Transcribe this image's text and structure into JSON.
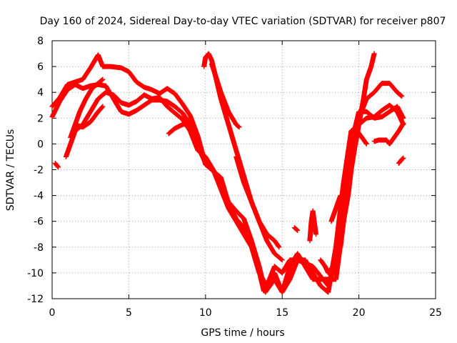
{
  "chart_data": {
    "type": "scatter",
    "title": "Day 160 of 2024, Sidereal Day-to-day VTEC variation (SDTVAR) for receiver p807",
    "xlabel": "GPS time / hours",
    "ylabel": "SDTVAR / TECUs",
    "xlim": [
      0,
      25
    ],
    "ylim": [
      -12,
      8
    ],
    "x_ticks": [
      0,
      5,
      10,
      15,
      20,
      25
    ],
    "y_ticks": [
      -12,
      -10,
      -8,
      -6,
      -4,
      -2,
      0,
      2,
      4,
      6,
      8
    ],
    "x_tick_labels": [
      "0",
      "5",
      "10",
      "15",
      "20",
      "25"
    ],
    "y_tick_labels": [
      "-12",
      "-10",
      "-8",
      "-6",
      "-4",
      "-2",
      "0",
      "2",
      "4",
      "6",
      "8"
    ],
    "grid": true,
    "legend": "none",
    "marker": "plus",
    "color": "#ff0000",
    "series": [
      {
        "points": [
          [
            0.0,
            2.9
          ],
          [
            0.5,
            3.6
          ],
          [
            1.0,
            4.6
          ],
          [
            1.5,
            4.8
          ],
          [
            2.0,
            5.0
          ],
          [
            2.5,
            5.9
          ],
          [
            3.0,
            6.9
          ],
          [
            3.3,
            6.0
          ],
          [
            3.8,
            6.0
          ],
          [
            4.5,
            5.9
          ],
          [
            5.0,
            5.6
          ],
          [
            5.5,
            4.8
          ],
          [
            6.0,
            4.4
          ],
          [
            6.5,
            4.2
          ],
          [
            7.0,
            3.9
          ],
          [
            7.5,
            4.3
          ],
          [
            8.0,
            3.9
          ],
          [
            8.5,
            3.1
          ],
          [
            9.0,
            2.2
          ],
          [
            9.5,
            0.6
          ],
          [
            10.0,
            -1.6
          ],
          [
            10.5,
            -2.1
          ],
          [
            11.0,
            -2.6
          ],
          [
            11.5,
            -4.6
          ],
          [
            12.0,
            -5.8
          ],
          [
            12.5,
            -6.5
          ],
          [
            13.0,
            -7.9
          ],
          [
            13.5,
            -9.9
          ],
          [
            13.8,
            -11.4
          ],
          [
            14.0,
            -11.2
          ],
          [
            14.5,
            -10.0
          ],
          [
            15.0,
            -11.5
          ],
          [
            15.5,
            -9.5
          ],
          [
            16.0,
            -8.5
          ],
          [
            16.5,
            -9.5
          ],
          [
            17.0,
            -10.5
          ],
          [
            17.5,
            -10.5
          ],
          [
            18.0,
            -10.5
          ],
          [
            18.5,
            -10.5
          ],
          [
            19.0,
            -6.0
          ],
          [
            19.5,
            -1.5
          ],
          [
            20.0,
            2.0
          ],
          [
            20.5,
            3.5
          ],
          [
            21.0,
            4.0
          ],
          [
            21.5,
            4.7
          ],
          [
            22.0,
            4.7
          ],
          [
            22.5,
            4.0
          ],
          [
            22.8,
            3.7
          ]
        ]
      },
      {
        "points": [
          [
            0.0,
            2.1
          ],
          [
            0.5,
            3.3
          ],
          [
            1.0,
            4.2
          ],
          [
            1.5,
            4.6
          ],
          [
            2.0,
            4.3
          ],
          [
            2.5,
            4.5
          ],
          [
            3.0,
            4.6
          ],
          [
            3.5,
            4.5
          ],
          [
            4.0,
            3.5
          ],
          [
            4.5,
            2.5
          ],
          [
            5.0,
            2.3
          ],
          [
            5.5,
            2.6
          ],
          [
            6.0,
            3.0
          ],
          [
            6.5,
            3.4
          ],
          [
            7.0,
            3.4
          ],
          [
            7.5,
            3.3
          ],
          [
            8.0,
            2.9
          ],
          [
            8.5,
            2.4
          ],
          [
            9.0,
            1.5
          ],
          [
            9.5,
            -0.2
          ],
          [
            10.0,
            -1.5
          ],
          [
            10.5,
            -2.0
          ],
          [
            11.0,
            -3.0
          ],
          [
            11.5,
            -4.5
          ],
          [
            12.0,
            -5.2
          ],
          [
            12.5,
            -5.8
          ],
          [
            13.0,
            -7.5
          ],
          [
            13.5,
            -9.5
          ],
          [
            13.9,
            -11.5
          ],
          [
            14.5,
            -10.5
          ],
          [
            15.0,
            -11.5
          ],
          [
            15.5,
            -10.5
          ],
          [
            16.0,
            -9.0
          ],
          [
            17.0,
            -9.5
          ],
          [
            18.0,
            -11.0
          ],
          [
            18.5,
            -9.0
          ],
          [
            19.0,
            -4.0
          ],
          [
            19.5,
            0.0
          ],
          [
            20.0,
            2.5
          ],
          [
            20.5,
            2.5
          ],
          [
            21.0,
            2.0
          ],
          [
            21.5,
            2.1
          ],
          [
            22.0,
            2.5
          ],
          [
            22.5,
            2.9
          ],
          [
            22.9,
            2.0
          ]
        ]
      },
      {
        "points": [
          [
            0.9,
            -1.0
          ],
          [
            1.2,
            0.0
          ],
          [
            1.5,
            1.0
          ],
          [
            2.0,
            1.5
          ],
          [
            2.5,
            2.5
          ],
          [
            3.0,
            3.5
          ],
          [
            3.5,
            4.0
          ],
          [
            4.0,
            3.8
          ],
          [
            4.5,
            3.2
          ],
          [
            5.0,
            3.0
          ],
          [
            5.5,
            3.3
          ],
          [
            6.0,
            3.8
          ],
          [
            6.5,
            3.5
          ],
          [
            7.0,
            3.6
          ],
          [
            7.5,
            2.9
          ],
          [
            8.0,
            2.4
          ],
          [
            8.5,
            1.9
          ],
          [
            9.0,
            1.0
          ],
          [
            9.5,
            -0.5
          ],
          [
            10.0,
            -1.0
          ],
          [
            10.5,
            -2.0
          ],
          [
            11.0,
            -3.5
          ],
          [
            11.5,
            -5.0
          ],
          [
            12.0,
            -6.0
          ],
          [
            12.5,
            -7.0
          ],
          [
            13.0,
            -8.0
          ],
          [
            13.5,
            -10.0
          ],
          [
            14.0,
            -11.0
          ],
          [
            14.5,
            -9.5
          ],
          [
            15.0,
            -10.0
          ],
          [
            15.5,
            -9.0
          ],
          [
            16.5,
            -9.0
          ],
          [
            17.5,
            -11.0
          ],
          [
            18.0,
            -11.5
          ],
          [
            18.5,
            -8.0
          ],
          [
            19.0,
            -3.0
          ],
          [
            19.5,
            1.0
          ],
          [
            20.0,
            1.5
          ],
          [
            20.5,
            2.0
          ],
          [
            21.0,
            2.1
          ],
          [
            21.5,
            2.6
          ],
          [
            22.0,
            3.0
          ],
          [
            22.5,
            2.5
          ],
          [
            22.9,
            1.5
          ]
        ]
      },
      {
        "points": [
          [
            1.2,
            0.5
          ],
          [
            1.5,
            1.5
          ],
          [
            1.8,
            2.5
          ],
          [
            2.2,
            3.5
          ],
          [
            2.6,
            4.3
          ],
          [
            3.0,
            4.7
          ],
          [
            3.3,
            5.0
          ]
        ]
      },
      {
        "points": [
          [
            1.5,
            1.5
          ],
          [
            2.0,
            1.3
          ],
          [
            2.5,
            1.7
          ],
          [
            3.0,
            2.5
          ],
          [
            3.3,
            2.9
          ]
        ]
      },
      {
        "points": [
          [
            7.6,
            0.8
          ],
          [
            8.0,
            1.2
          ],
          [
            8.5,
            1.5
          ],
          [
            9.0,
            1.6
          ]
        ]
      },
      {
        "points": [
          [
            0.2,
            -1.5
          ],
          [
            0.4,
            -1.8
          ]
        ]
      },
      {
        "points": [
          [
            9.9,
            6.0
          ],
          [
            10.0,
            6.7
          ],
          [
            10.2,
            7.0
          ],
          [
            10.4,
            6.5
          ],
          [
            10.6,
            5.5
          ],
          [
            11.0,
            3.5
          ],
          [
            11.5,
            1.5
          ],
          [
            12.0,
            -0.5
          ],
          [
            12.5,
            -2.5
          ],
          [
            13.0,
            -4.5
          ],
          [
            13.5,
            -6.0
          ],
          [
            14.0,
            -7.0
          ],
          [
            14.5,
            -7.5
          ],
          [
            14.8,
            -8.0
          ]
        ]
      },
      {
        "points": [
          [
            10.4,
            6.2
          ],
          [
            10.6,
            5.5
          ],
          [
            11.0,
            4.0
          ],
          [
            11.5,
            2.5
          ],
          [
            12.0,
            1.5
          ],
          [
            12.2,
            1.3
          ]
        ]
      },
      {
        "points": [
          [
            12.0,
            -1.0
          ],
          [
            12.5,
            -3.0
          ],
          [
            13.0,
            -4.5
          ],
          [
            13.5,
            -6.0
          ],
          [
            14.0,
            -7.5
          ],
          [
            14.5,
            -8.5
          ],
          [
            15.0,
            -9.0
          ]
        ]
      },
      {
        "points": [
          [
            15.8,
            -6.5
          ],
          [
            16.0,
            -6.7
          ]
        ]
      },
      {
        "points": [
          [
            16.8,
            -7.5
          ],
          [
            16.9,
            -6.0
          ],
          [
            17.0,
            -5.2
          ],
          [
            17.2,
            -7.0
          ]
        ]
      },
      {
        "points": [
          [
            17.5,
            -9.0
          ],
          [
            17.8,
            -9.5
          ],
          [
            18.0,
            -10.0
          ],
          [
            18.3,
            -9.5
          ]
        ]
      },
      {
        "points": [
          [
            18.2,
            -6.0
          ],
          [
            18.5,
            -5.0
          ],
          [
            18.8,
            -4.0
          ],
          [
            19.0,
            -4.0
          ]
        ]
      },
      {
        "points": [
          [
            18.8,
            -8.0
          ],
          [
            19.0,
            -6.0
          ],
          [
            19.3,
            -4.0
          ],
          [
            19.5,
            -2.0
          ],
          [
            19.7,
            -0.5
          ],
          [
            20.0,
            1.5
          ],
          [
            20.3,
            3.5
          ],
          [
            20.5,
            5.0
          ],
          [
            20.8,
            6.0
          ],
          [
            21.0,
            7.0
          ]
        ]
      },
      {
        "points": [
          [
            19.3,
            -1.0
          ],
          [
            19.6,
            1.0
          ],
          [
            19.9,
            1.0
          ],
          [
            20.2,
            0.5
          ],
          [
            20.5,
            0.0
          ]
        ]
      },
      {
        "points": [
          [
            21.0,
            0.2
          ],
          [
            21.3,
            0.3
          ],
          [
            21.8,
            0.3
          ],
          [
            22.0,
            0.0
          ],
          [
            22.3,
            0.5
          ],
          [
            22.6,
            1.0
          ],
          [
            22.9,
            1.6
          ]
        ]
      },
      {
        "points": [
          [
            22.6,
            -1.5
          ],
          [
            22.8,
            -1.2
          ],
          [
            22.9,
            -1.1
          ]
        ]
      }
    ]
  }
}
